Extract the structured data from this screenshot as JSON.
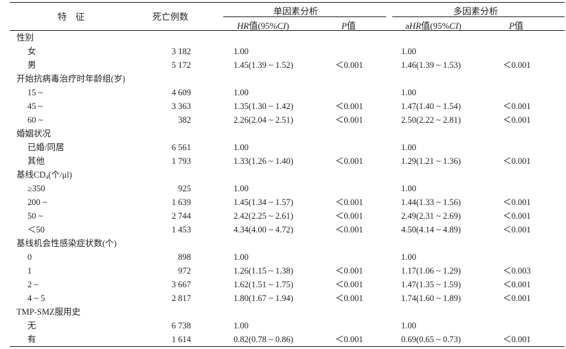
{
  "headers": {
    "feature": "特　征",
    "deaths": "死亡例数",
    "univariate": "单因素分析",
    "multivariate": "多因素分析",
    "hr_prefix": "",
    "hr_italic": "HR",
    "hr_mid": "值(95%",
    "hr_ci": "CI",
    "hr_suffix": ")",
    "p_italic": "P",
    "p_suffix": "值",
    "ahr_prefix": "a",
    "ahr_italic": "HR",
    "ahr_mid": "值(95%",
    "ahr_ci": "CI",
    "ahr_suffix": ")"
  },
  "rows": [
    {
      "feature": "性别",
      "type": "group"
    },
    {
      "feature": "女",
      "type": "item",
      "deaths": "3 182",
      "hr": "1.00",
      "p1": "",
      "ahr": "1.00",
      "p2": ""
    },
    {
      "feature": "男",
      "type": "item",
      "deaths": "5 172",
      "hr": "1.45(1.39 ~ 1.52)",
      "p1": "＜0.001",
      "ahr": "1.46(1.39 ~ 1.53)",
      "p2": "＜0.001"
    },
    {
      "feature": "开始抗病毒治疗时年龄组(岁)",
      "type": "group"
    },
    {
      "feature": "15 ~",
      "type": "item",
      "deaths": "4 609",
      "hr": "1.00",
      "p1": "",
      "ahr": "1.00",
      "p2": ""
    },
    {
      "feature": "45 ~",
      "type": "item",
      "deaths": "3 363",
      "hr": "1.35(1.30 ~ 1.42)",
      "p1": "＜0.001",
      "ahr": "1.47(1.40 ~ 1.54)",
      "p2": "＜0.001"
    },
    {
      "feature": "60 ~",
      "type": "item",
      "deaths": "382",
      "hr": "2.26(2.04 ~ 2.51)",
      "p1": "＜0.001",
      "ahr": "2.50(2.22 ~ 2.81)",
      "p2": "＜0.001"
    },
    {
      "feature": "婚姻状况",
      "type": "group"
    },
    {
      "feature": "已婚/同居",
      "type": "item",
      "deaths": "6 561",
      "hr": "1.00",
      "p1": "",
      "ahr": "1.00",
      "p2": ""
    },
    {
      "feature": "其他",
      "type": "item",
      "deaths": "1 793",
      "hr": "1.33(1.26 ~ 1.40)",
      "p1": "＜0.001",
      "ahr": "1.29(1.21 ~ 1.36)",
      "p2": "＜0.001"
    },
    {
      "feature": "基线CD",
      "feature_sub": "4",
      "feature_tail": "(个/μl)",
      "type": "group"
    },
    {
      "feature": "≥350",
      "type": "item",
      "deaths": "925",
      "hr": "1.00",
      "p1": "",
      "ahr": "1.00",
      "p2": ""
    },
    {
      "feature": "200 ~",
      "type": "item",
      "deaths": "1 639",
      "hr": "1.45(1.34 ~ 1.57)",
      "p1": "＜0.001",
      "ahr": "1.44(1.33 ~ 1.56)",
      "p2": "＜0.001"
    },
    {
      "feature": "50 ~",
      "type": "item",
      "deaths": "2 744",
      "hr": "2.42(2.25 ~ 2.61)",
      "p1": "＜0.001",
      "ahr": "2.49(2.31 ~ 2.69)",
      "p2": "＜0.001"
    },
    {
      "feature": "＜50",
      "type": "item",
      "deaths": "1 453",
      "hr": "4.34(4.00 ~ 4.72)",
      "p1": "＜0.001",
      "ahr": "4.50(4.14 ~ 4.89)",
      "p2": "＜0.001"
    },
    {
      "feature": "基线机会性感染症状数(个)",
      "type": "group"
    },
    {
      "feature": "0",
      "type": "item",
      "deaths": "898",
      "hr": "1.00",
      "p1": "",
      "ahr": "1.00",
      "p2": ""
    },
    {
      "feature": "1",
      "type": "item",
      "deaths": "972",
      "hr": "1.26(1.15 ~ 1.38)",
      "p1": "＜0.001",
      "ahr": "1.17(1.06 ~ 1.29)",
      "p2": "＜0.003"
    },
    {
      "feature": "2 ~",
      "type": "item",
      "deaths": "3 667",
      "hr": "1.62(1.51 ~ 1.75)",
      "p1": "＜0.001",
      "ahr": "1.47(1.35 ~ 1.59)",
      "p2": "＜0.001"
    },
    {
      "feature": "4 ~ 5",
      "type": "item",
      "deaths": "2 817",
      "hr": "1.80(1.67 ~ 1.94)",
      "p1": "＜0.001",
      "ahr": "1.74(1.60 ~ 1.89)",
      "p2": "＜0.001"
    },
    {
      "feature": "TMP-SMZ服用史",
      "type": "group"
    },
    {
      "feature": "无",
      "type": "item",
      "deaths": "6 738",
      "hr": "1.00",
      "p1": "",
      "ahr": "1.00",
      "p2": ""
    },
    {
      "feature": "有",
      "type": "item",
      "deaths": "1 614",
      "hr": "0.82(0.78 ~ 0.86)",
      "p1": "＜0.001",
      "ahr": "0.69(0.65 ~ 0.73)",
      "p2": "＜0.001"
    }
  ]
}
